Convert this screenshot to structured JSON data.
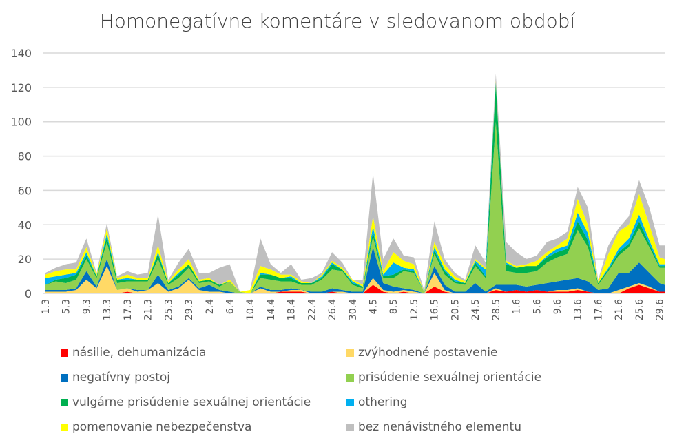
{
  "chart_data": {
    "type": "area",
    "stacked": true,
    "title": "Homonegatívne komentáre v sledovanom období",
    "xlabel": "",
    "ylabel": "",
    "ylim": [
      0,
      140
    ],
    "yticks": [
      0,
      20,
      40,
      60,
      80,
      100,
      120,
      140
    ],
    "xtick_labels": [
      "1.3",
      "5.3",
      "9.3",
      "13.3",
      "17.3",
      "21.3",
      "25.3",
      "29.3",
      "2.4",
      "6.4",
      "10.4",
      "14.4",
      "18.4",
      "22.4",
      "26.4",
      "30.4",
      "4.5",
      "8.5",
      "12.5",
      "16.5",
      "20.5",
      "24.5",
      "28.5",
      "1.6",
      "5.6",
      "9.6",
      "13.6",
      "17.6",
      "21.6",
      "25.6",
      "29.6"
    ],
    "grid": true,
    "legend_position": "bottom",
    "series": [
      {
        "name": "násilie, dehumanizácia",
        "color": "#ff0000"
      },
      {
        "name": "zvýhodnené postavenie",
        "color": "#ffd966"
      },
      {
        "name": "negatívny postoj",
        "color": "#0070c0"
      },
      {
        "name": "prisúdenie sexuálnej orientácie",
        "color": "#92d050"
      },
      {
        "name": "vulgárne prisúdenie sexuálnej orientácie",
        "color": "#00b050"
      },
      {
        "name": "othering",
        "color": "#00b0f0"
      },
      {
        "name": "pomenovanie nebezpečenstva",
        "color": "#ffff00"
      },
      {
        "name": "bez nenávistného elementu",
        "color": "#bfbfbf"
      }
    ],
    "x": [
      "1.3",
      "3.3",
      "5.3",
      "7.3",
      "9.3",
      "11.3",
      "13.3",
      "15.3",
      "17.3",
      "19.3",
      "21.3",
      "23.3",
      "25.3",
      "27.3",
      "29.3",
      "31.3",
      "2.4",
      "4.4",
      "6.4",
      "8.4",
      "10.4",
      "12.4",
      "14.4",
      "16.4",
      "18.4",
      "20.4",
      "22.4",
      "24.4",
      "26.4",
      "28.4",
      "30.4",
      "2.5",
      "4.5",
      "6.5",
      "8.5",
      "10.5",
      "12.5",
      "14.5",
      "16.5",
      "18.5",
      "20.5",
      "22.5",
      "24.5",
      "26.5",
      "28.5",
      "30.5",
      "1.6",
      "3.6",
      "5.6",
      "7.6",
      "9.6",
      "11.6",
      "13.6",
      "15.6",
      "17.6",
      "19.6",
      "21.6",
      "23.6",
      "25.6",
      "27.6",
      "29.6",
      "30.6"
    ],
    "values_by_date": [
      [
        0,
        1,
        1,
        3,
        0,
        4,
        2,
        1
      ],
      [
        0,
        1,
        1,
        5,
        1,
        2,
        3,
        2
      ],
      [
        0,
        1,
        1,
        4,
        3,
        2,
        3,
        3
      ],
      [
        0,
        2,
        1,
        5,
        3,
        1,
        2,
        4
      ],
      [
        0,
        8,
        5,
        7,
        2,
        2,
        3,
        5
      ],
      [
        0,
        3,
        1,
        5,
        1,
        0,
        1,
        1
      ],
      [
        0,
        16,
        4,
        10,
        3,
        2,
        3,
        3
      ],
      [
        0,
        2,
        0,
        4,
        2,
        0,
        1,
        1
      ],
      [
        1,
        2,
        0,
        4,
        1,
        1,
        2,
        2
      ],
      [
        0,
        1,
        1,
        5,
        1,
        0,
        1,
        2
      ],
      [
        0,
        2,
        0,
        5,
        1,
        0,
        1,
        3
      ],
      [
        0,
        6,
        5,
        9,
        3,
        1,
        4,
        18
      ],
      [
        0,
        1,
        1,
        3,
        1,
        0,
        1,
        1
      ],
      [
        0,
        3,
        1,
        5,
        2,
        1,
        2,
        4
      ],
      [
        0,
        8,
        1,
        6,
        2,
        0,
        3,
        6
      ],
      [
        0,
        2,
        1,
        3,
        1,
        0,
        1,
        4
      ],
      [
        0,
        1,
        4,
        2,
        1,
        0,
        1,
        3
      ],
      [
        0,
        1,
        1,
        2,
        1,
        0,
        0,
        10
      ],
      [
        0,
        0,
        1,
        6,
        0,
        0,
        1,
        9
      ],
      [
        0,
        0,
        0,
        1,
        0,
        0,
        0,
        0
      ],
      [
        0,
        0,
        0,
        0,
        0,
        0,
        2,
        0
      ],
      [
        0,
        3,
        1,
        5,
        2,
        1,
        4,
        16
      ],
      [
        0,
        1,
        1,
        6,
        3,
        0,
        3,
        3
      ],
      [
        1,
        0,
        1,
        5,
        2,
        0,
        2,
        1
      ],
      [
        1,
        1,
        1,
        4,
        2,
        1,
        1,
        6
      ],
      [
        1,
        1,
        0,
        3,
        1,
        0,
        1,
        1
      ],
      [
        0,
        0,
        1,
        4,
        1,
        0,
        0,
        3
      ],
      [
        0,
        0,
        1,
        7,
        1,
        1,
        1,
        1
      ],
      [
        1,
        0,
        2,
        11,
        3,
        1,
        1,
        5
      ],
      [
        0,
        1,
        1,
        11,
        1,
        0,
        1,
        3
      ],
      [
        0,
        0,
        1,
        4,
        1,
        1,
        1,
        0
      ],
      [
        0,
        0,
        1,
        2,
        1,
        0,
        1,
        3
      ],
      [
        5,
        4,
        18,
        6,
        3,
        3,
        6,
        25
      ],
      [
        1,
        1,
        4,
        3,
        1,
        1,
        2,
        7
      ],
      [
        0,
        1,
        3,
        5,
        2,
        7,
        6,
        8
      ],
      [
        1,
        1,
        1,
        10,
        1,
        1,
        4,
        3
      ],
      [
        0,
        1,
        1,
        10,
        1,
        1,
        3,
        4
      ],
      [
        0,
        0,
        0,
        1,
        0,
        0,
        0,
        1
      ],
      [
        4,
        8,
        4,
        7,
        2,
        2,
        3,
        12
      ],
      [
        1,
        1,
        3,
        6,
        2,
        1,
        3,
        3
      ],
      [
        0,
        0,
        1,
        5,
        1,
        1,
        2,
        2
      ],
      [
        0,
        0,
        1,
        4,
        1,
        0,
        1,
        1
      ],
      [
        0,
        0,
        6,
        10,
        2,
        1,
        1,
        8
      ],
      [
        0,
        0,
        1,
        8,
        1,
        4,
        1,
        3
      ],
      [
        2,
        1,
        2,
        95,
        22,
        1,
        1,
        4
      ],
      [
        1,
        0,
        4,
        8,
        4,
        1,
        1,
        11
      ],
      [
        2,
        0,
        3,
        7,
        3,
        0,
        1,
        8
      ],
      [
        1,
        0,
        3,
        8,
        4,
        0,
        1,
        3
      ],
      [
        2,
        0,
        3,
        8,
        3,
        0,
        3,
        3
      ],
      [
        1,
        0,
        5,
        12,
        3,
        1,
        2,
        6
      ],
      [
        1,
        1,
        5,
        14,
        3,
        2,
        2,
        4
      ],
      [
        1,
        1,
        6,
        15,
        3,
        2,
        4,
        4
      ],
      [
        2,
        1,
        6,
        28,
        5,
        5,
        8,
        7
      ],
      [
        1,
        0,
        6,
        20,
        4,
        4,
        5,
        10
      ],
      [
        0,
        0,
        2,
        3,
        1,
        0,
        1,
        1
      ],
      [
        0,
        0,
        3,
        10,
        1,
        1,
        8,
        5
      ],
      [
        0,
        2,
        10,
        10,
        2,
        2,
        10,
        2
      ],
      [
        3,
        1,
        8,
        15,
        2,
        3,
        8,
        5
      ],
      [
        5,
        1,
        12,
        20,
        4,
        4,
        12,
        8
      ],
      [
        3,
        1,
        8,
        15,
        2,
        2,
        9,
        10
      ],
      [
        1,
        0,
        5,
        9,
        1,
        1,
        4,
        7
      ],
      [
        1,
        0,
        4,
        10,
        1,
        1,
        3,
        8
      ]
    ]
  }
}
